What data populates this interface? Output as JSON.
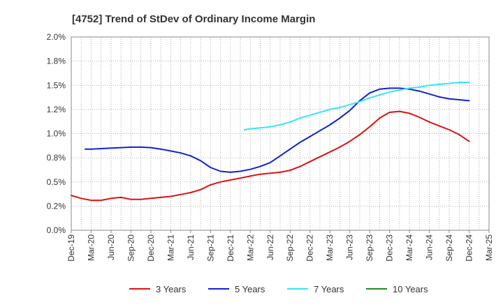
{
  "chart_data": {
    "type": "line",
    "title": "[4752]  Trend of StDev of Ordinary Income Margin",
    "x_categories": [
      "Dec-19",
      "Mar-20",
      "Jun-20",
      "Sep-20",
      "Dec-20",
      "Mar-21",
      "Jun-21",
      "Sep-21",
      "Dec-21",
      "Mar-22",
      "Jun-22",
      "Sep-22",
      "Dec-22",
      "Mar-23",
      "Jun-23",
      "Sep-23",
      "Dec-23",
      "Mar-24",
      "Jun-24",
      "Sep-24",
      "Dec-24",
      "Mar-25"
    ],
    "y_ticks": [
      "0.0%",
      "0.2%",
      "0.5%",
      "0.8%",
      "1.0%",
      "1.2%",
      "1.5%",
      "1.8%",
      "2.0%"
    ],
    "ylim": [
      0,
      2.0
    ],
    "grid": true,
    "legend_position": "bottom",
    "colors": {
      "3y": "#dd1111",
      "5y": "#1122cc",
      "7y": "#33e6f0",
      "10y": "#228822"
    },
    "series": [
      {
        "name": "3 Years",
        "color": "#dd1111",
        "x": [
          0,
          0.5,
          1,
          1.5,
          2,
          2.5,
          3,
          3.5,
          4,
          4.5,
          5,
          5.5,
          6,
          6.5,
          7,
          7.5,
          8,
          8.5,
          9,
          9.5,
          10,
          10.5,
          11,
          11.5,
          12,
          12.5,
          13,
          13.5,
          14,
          14.5,
          15,
          15.5,
          16,
          16.5,
          17,
          17.5,
          18,
          18.5,
          19,
          19.5,
          20
        ],
        "values": [
          0.36,
          0.33,
          0.31,
          0.31,
          0.33,
          0.34,
          0.32,
          0.32,
          0.33,
          0.34,
          0.35,
          0.37,
          0.39,
          0.42,
          0.47,
          0.5,
          0.52,
          0.54,
          0.56,
          0.58,
          0.59,
          0.6,
          0.62,
          0.66,
          0.71,
          0.76,
          0.81,
          0.86,
          0.92,
          0.99,
          1.07,
          1.16,
          1.22,
          1.23,
          1.21,
          1.17,
          1.12,
          1.08,
          1.04,
          0.99,
          0.92
        ]
      },
      {
        "name": "5 Years",
        "color": "#1122cc",
        "x": [
          0.7,
          1,
          1.5,
          2,
          2.5,
          3,
          3.5,
          4,
          4.5,
          5,
          5.5,
          6,
          6.5,
          7,
          7.5,
          8,
          8.5,
          9,
          9.5,
          10,
          10.5,
          11,
          11.5,
          12,
          12.5,
          13,
          13.5,
          14,
          14.5,
          15,
          15.5,
          16,
          16.5,
          17,
          17.5,
          18,
          18.5,
          19,
          19.5,
          20
        ],
        "values": [
          0.84,
          0.84,
          0.845,
          0.85,
          0.855,
          0.86,
          0.86,
          0.855,
          0.84,
          0.82,
          0.8,
          0.77,
          0.72,
          0.65,
          0.61,
          0.6,
          0.61,
          0.63,
          0.66,
          0.7,
          0.77,
          0.84,
          0.91,
          0.97,
          1.03,
          1.09,
          1.16,
          1.24,
          1.34,
          1.42,
          1.46,
          1.47,
          1.47,
          1.46,
          1.44,
          1.41,
          1.38,
          1.36,
          1.35,
          1.34
        ]
      },
      {
        "name": "7 Years",
        "color": "#33e6f0",
        "x": [
          8.7,
          9,
          9.5,
          10,
          10.5,
          11,
          11.5,
          12,
          12.5,
          13,
          13.5,
          14,
          14.5,
          15,
          15.5,
          16,
          16.5,
          17,
          17.5,
          18,
          18.5,
          19,
          19.5,
          20
        ],
        "values": [
          1.04,
          1.05,
          1.06,
          1.07,
          1.09,
          1.12,
          1.16,
          1.19,
          1.22,
          1.25,
          1.27,
          1.3,
          1.33,
          1.37,
          1.4,
          1.43,
          1.45,
          1.47,
          1.48,
          1.5,
          1.51,
          1.52,
          1.53,
          1.53
        ]
      },
      {
        "name": "10 Years",
        "color": "#228822",
        "x": [],
        "values": []
      }
    ]
  }
}
